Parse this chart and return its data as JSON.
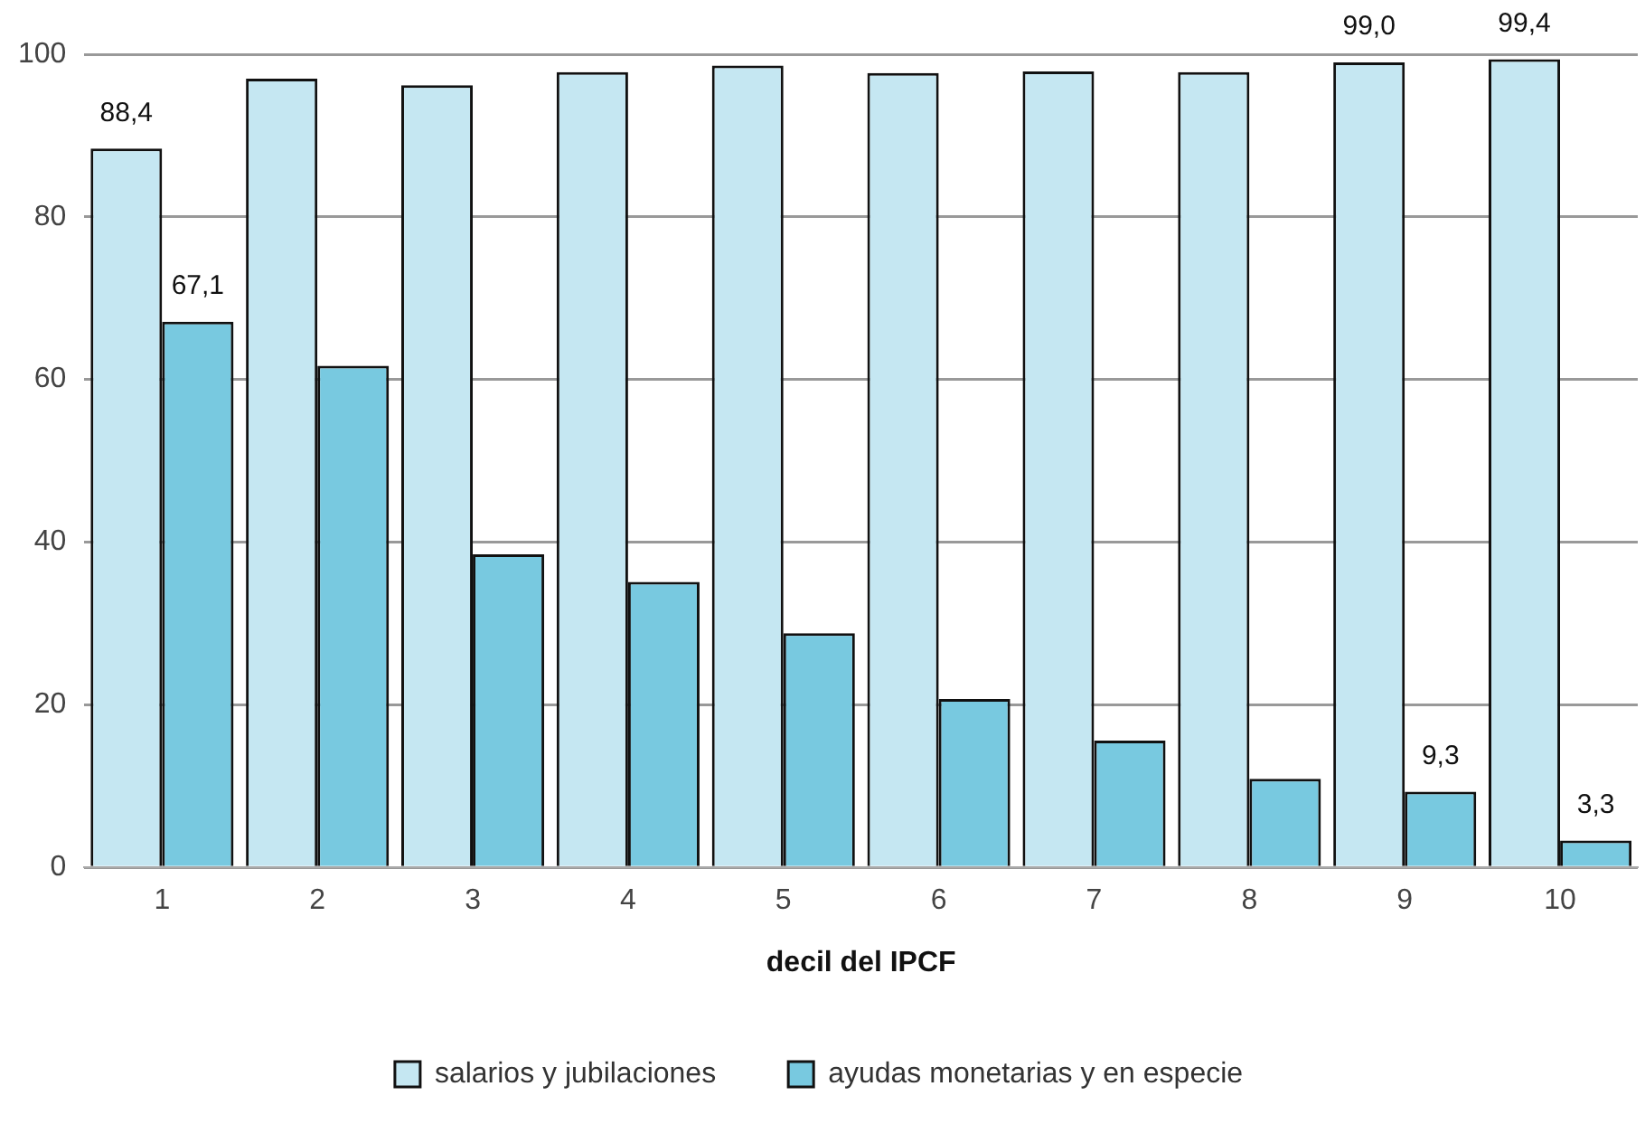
{
  "chart_data": {
    "type": "bar",
    "xlabel": "decil del IPCF",
    "categories": [
      "1",
      "2",
      "3",
      "4",
      "5",
      "6",
      "7",
      "8",
      "9",
      "10"
    ],
    "series": [
      {
        "name": "salarios y jubilaciones",
        "color": "#c5e7f2",
        "values": [
          88.4,
          97.0,
          96.2,
          97.8,
          98.6,
          97.7,
          97.9,
          97.8,
          99.0,
          99.4
        ],
        "value_labels": [
          "88,4",
          null,
          null,
          null,
          null,
          null,
          null,
          null,
          "99,0",
          "99,4"
        ]
      },
      {
        "name": "ayudas monetarias y en especie",
        "color": "#78c9e0",
        "values": [
          67.1,
          61.7,
          38.5,
          35.1,
          28.8,
          20.7,
          15.6,
          10.9,
          9.3,
          3.3
        ],
        "value_labels": [
          "67,1",
          null,
          null,
          null,
          null,
          null,
          null,
          null,
          "9,3",
          "3,3"
        ]
      }
    ],
    "ylim": [
      0,
      100
    ],
    "yticks": [
      0,
      20,
      40,
      60,
      80,
      100
    ],
    "grid": "y",
    "legend": "bottom"
  }
}
